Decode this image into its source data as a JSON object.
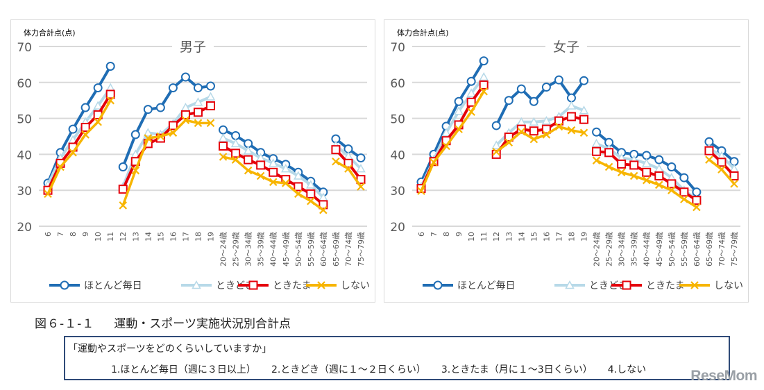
{
  "caption": {
    "figure": "図６-１-１",
    "title": "運動・スポーツ実施状況別合計点"
  },
  "question": {
    "text": "「運動やスポーツをどのくらいしていますか」",
    "options": [
      "1.ほとんど毎日（週に３日以上）",
      "2.ときどき（週に１～２日くらい）",
      "3.ときたま（月に１～3日くらい）",
      "4.しない"
    ]
  },
  "watermark": "ReseMom",
  "colors": {
    "ほとんど毎日": "#1f6db4",
    "ときどき": "#b7d9e8",
    "ときたま": "#e5000a",
    "しない": "#f7b500"
  },
  "chart_data": [
    {
      "type": "line",
      "title": "男子",
      "ylabel": "体力合計点(点)",
      "xlabel": "",
      "ylim": [
        20,
        70
      ],
      "yticks": [
        20,
        30,
        40,
        50,
        60,
        70
      ],
      "grid": true,
      "legend": "bottom",
      "categories": [
        "6",
        "7",
        "8",
        "9",
        "10",
        "11",
        "12",
        "13",
        "14",
        "15",
        "16",
        "17",
        "18",
        "19",
        "20～24歳",
        "25～29歳",
        "30～34歳",
        "35～39歳",
        "40～44歳",
        "45～49歳",
        "50～54歳",
        "55～59歳",
        "60～64歳",
        "65～69歳",
        "70～74歳",
        "75～79歳"
      ],
      "segments": [
        [
          0,
          5
        ],
        [
          6,
          13
        ],
        [
          14,
          22
        ],
        [
          23,
          25
        ]
      ],
      "series": [
        {
          "name": "ほとんど毎日",
          "marker": "circle",
          "values": [
            32,
            40.5,
            47,
            53,
            58.5,
            64.5,
            36.5,
            45.5,
            52.5,
            53,
            58.5,
            61.5,
            58.5,
            59,
            46.8,
            45.2,
            43,
            40.5,
            38.8,
            37.2,
            35,
            32.5,
            29.5,
            44.3,
            41.5,
            39
          ]
        },
        {
          "name": "ときどき",
          "marker": "triangle",
          "values": [
            31.5,
            39,
            44,
            49,
            53.5,
            58.5,
            31,
            40,
            46,
            45.5,
            48.5,
            53,
            54.5,
            56,
            44.5,
            43,
            41,
            39,
            37.5,
            36,
            34,
            31.5,
            28,
            42.5,
            39.5,
            36
          ]
        },
        {
          "name": "ときたま",
          "marker": "square",
          "values": [
            30,
            37.5,
            42,
            47.5,
            51,
            56.7,
            30.3,
            38,
            43,
            44.5,
            48,
            51,
            51.7,
            53.5,
            42.3,
            40.3,
            38.5,
            37,
            35,
            33,
            31,
            29,
            26,
            41.3,
            37.5,
            33
          ]
        },
        {
          "name": "しない",
          "marker": "x",
          "values": [
            29,
            36.5,
            40.5,
            45.5,
            49,
            55,
            25.8,
            35.5,
            44.5,
            45,
            46,
            49.5,
            48.7,
            48.7,
            39.3,
            38.5,
            35.5,
            34,
            32.3,
            32,
            29,
            27,
            24.5,
            38,
            36,
            31
          ]
        }
      ]
    },
    {
      "type": "line",
      "title": "女子",
      "ylabel": "体力合計点(点)",
      "xlabel": "",
      "ylim": [
        20,
        70
      ],
      "yticks": [
        20,
        30,
        40,
        50,
        60,
        70
      ],
      "grid": true,
      "legend": "bottom",
      "categories": [
        "6",
        "7",
        "8",
        "9",
        "10",
        "11",
        "12",
        "13",
        "14",
        "15",
        "16",
        "17",
        "18",
        "19",
        "20～24歳",
        "25～29歳",
        "30～34歳",
        "35～39歳",
        "40～44歳",
        "45～49歳",
        "50～54歳",
        "55～59歳",
        "60～64歳",
        "65～69歳",
        "70～74歳",
        "75～79歳"
      ],
      "segments": [
        [
          0,
          5
        ],
        [
          6,
          13
        ],
        [
          14,
          22
        ],
        [
          23,
          25
        ]
      ],
      "series": [
        {
          "name": "ほとんど毎日",
          "marker": "circle",
          "values": [
            32.3,
            40,
            47.8,
            54.7,
            60.3,
            66,
            48,
            55,
            58.2,
            54.7,
            58.7,
            60.7,
            55.7,
            60.5,
            46.2,
            43.3,
            40.5,
            40,
            39.7,
            38.5,
            36.5,
            33.5,
            29.5,
            43.5,
            41,
            38
          ]
        },
        {
          "name": "ときどき",
          "marker": "triangle",
          "values": [
            31,
            38.5,
            46,
            52,
            57,
            61.5,
            42.5,
            46,
            49,
            49,
            49.3,
            50.5,
            53.5,
            52.2,
            43,
            41.5,
            39,
            38.5,
            37.5,
            36,
            33.5,
            30,
            27.5,
            41.7,
            39.5,
            36
          ]
        },
        {
          "name": "ときたま",
          "marker": "square",
          "values": [
            30.5,
            38,
            43.8,
            48.2,
            54.5,
            59.3,
            40,
            44.8,
            47,
            46.5,
            47,
            49.3,
            50.5,
            49.7,
            40.8,
            40.5,
            37.3,
            37,
            35,
            34,
            31.8,
            29.5,
            27.2,
            41,
            37.8,
            34
          ]
        },
        {
          "name": "しない",
          "marker": "x",
          "values": [
            29.8,
            37.8,
            42.3,
            47,
            51.8,
            57.5,
            40.7,
            43.3,
            46.3,
            44.2,
            45.5,
            47.7,
            46.7,
            46,
            38.3,
            36.5,
            35,
            34,
            32.8,
            31.5,
            30,
            27.5,
            25.3,
            38.5,
            35.8,
            31.8
          ]
        }
      ]
    }
  ]
}
